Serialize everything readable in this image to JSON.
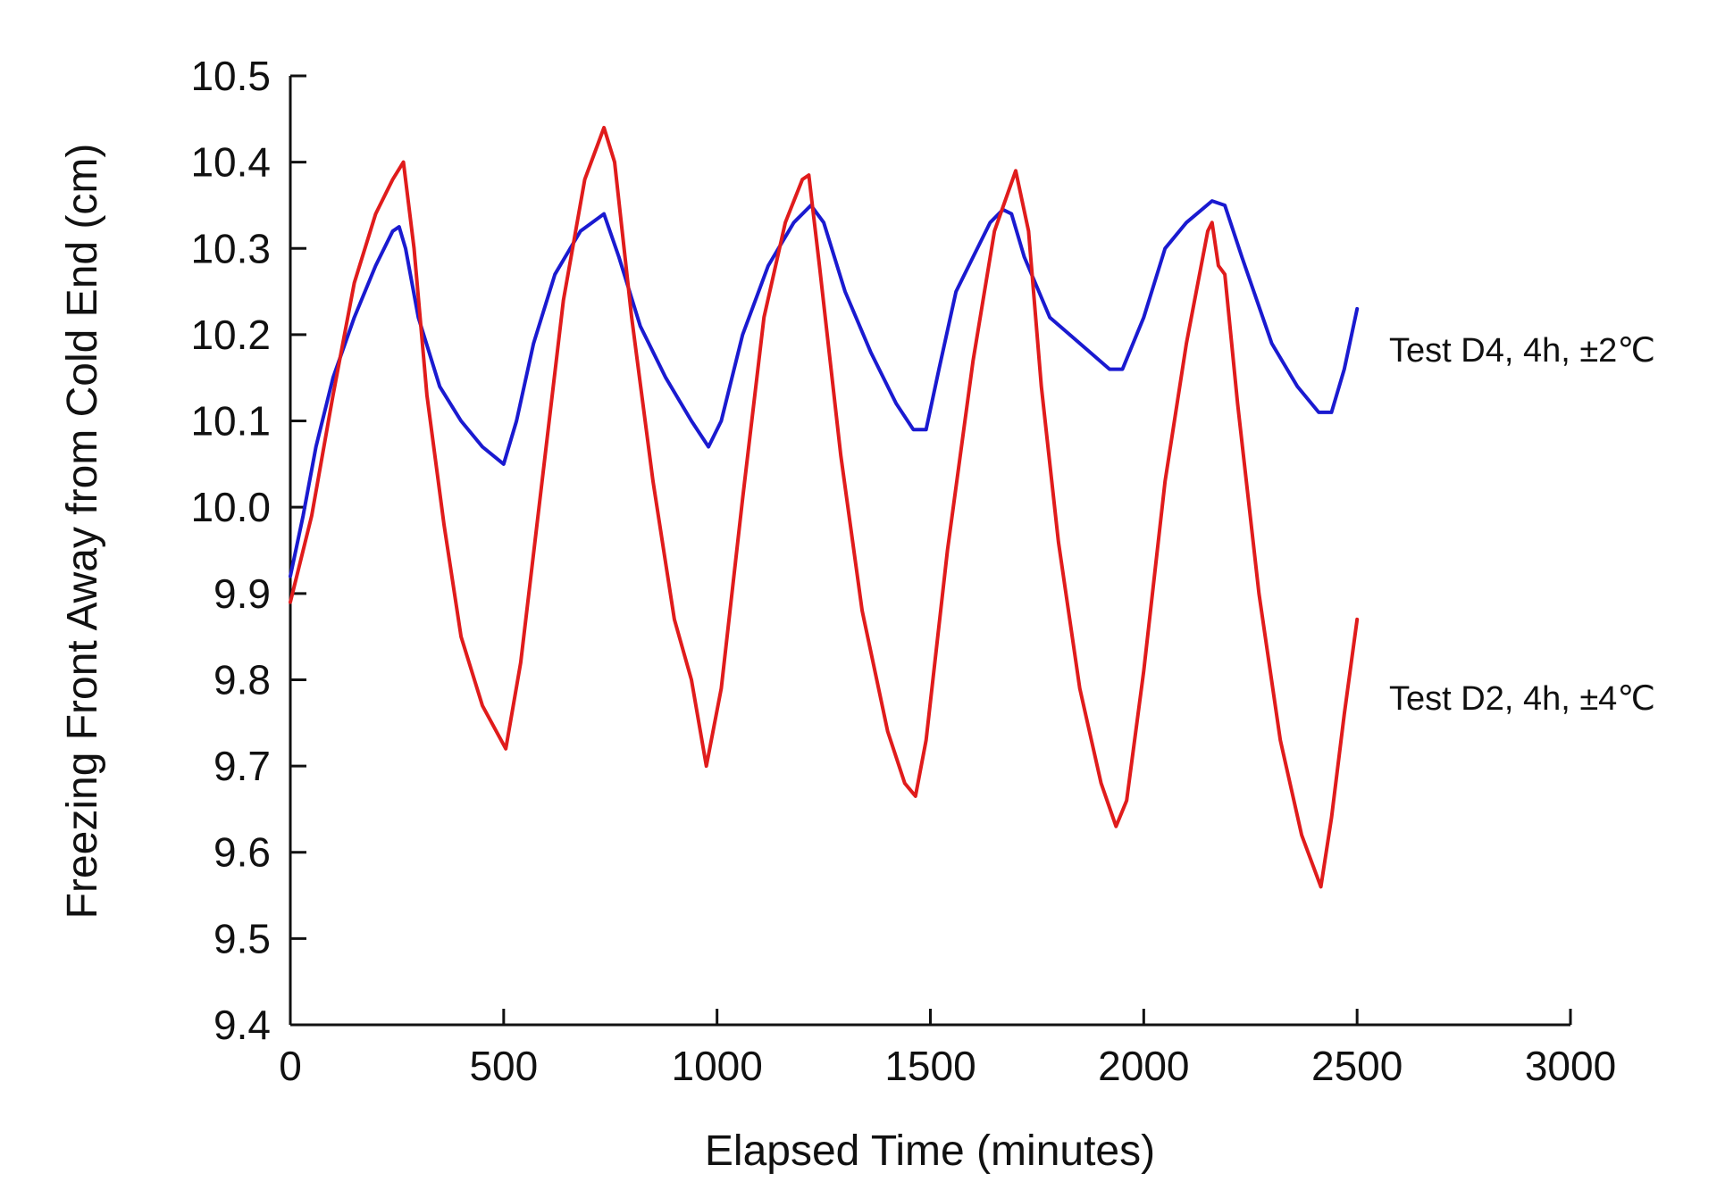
{
  "chart_data": {
    "type": "line",
    "title": "",
    "xlabel": "Elapsed Time (minutes)",
    "ylabel": "Freezing Front Away from Cold End (cm)",
    "xlim": [
      0,
      3000
    ],
    "ylim": [
      9.4,
      10.5
    ],
    "grid": false,
    "legend_position": "right (inline labels)",
    "x_ticks": [
      0,
      500,
      1000,
      1500,
      2000,
      2500,
      3000
    ],
    "x_tick_labels": [
      "0",
      "500",
      "1000",
      "1500",
      "2000",
      "2500",
      "3000"
    ],
    "y_ticks": [
      9.4,
      9.5,
      9.6,
      9.7,
      9.8,
      9.9,
      10.0,
      10.1,
      10.2,
      10.3,
      10.4,
      10.5
    ],
    "y_tick_labels": [
      "9.4",
      "9.5",
      "9.6",
      "9.7",
      "9.8",
      "9.9",
      "10.0",
      "10.1",
      "10.2",
      "10.3",
      "10.4",
      "10.5"
    ],
    "series": [
      {
        "name": "Test D4, 4h, ±2℃",
        "color": "#1a1ad0",
        "x": [
          0,
          30,
          60,
          100,
          150,
          200,
          240,
          255,
          270,
          300,
          350,
          400,
          450,
          500,
          530,
          570,
          620,
          680,
          735,
          770,
          820,
          880,
          940,
          980,
          1010,
          1060,
          1120,
          1180,
          1220,
          1250,
          1300,
          1360,
          1420,
          1460,
          1490,
          1520,
          1560,
          1600,
          1640,
          1670,
          1690,
          1720,
          1780,
          1850,
          1920,
          1950,
          2000,
          2050,
          2100,
          2160,
          2190,
          2230,
          2300,
          2360,
          2410,
          2440,
          2470,
          2500
        ],
        "values": [
          9.92,
          9.99,
          10.07,
          10.15,
          10.22,
          10.28,
          10.32,
          10.325,
          10.3,
          10.22,
          10.14,
          10.1,
          10.07,
          10.05,
          10.1,
          10.19,
          10.27,
          10.32,
          10.34,
          10.29,
          10.21,
          10.15,
          10.1,
          10.07,
          10.1,
          10.2,
          10.28,
          10.33,
          10.35,
          10.33,
          10.25,
          10.18,
          10.12,
          10.09,
          10.09,
          10.16,
          10.25,
          10.29,
          10.33,
          10.345,
          10.34,
          10.29,
          10.22,
          10.19,
          10.16,
          10.16,
          10.22,
          10.3,
          10.33,
          10.355,
          10.35,
          10.29,
          10.19,
          10.14,
          10.11,
          10.11,
          10.16,
          10.23
        ]
      },
      {
        "name": "Test D2, 4h, ±4℃",
        "color": "#e01c1c",
        "x": [
          0,
          50,
          100,
          150,
          200,
          240,
          265,
          290,
          320,
          360,
          400,
          450,
          505,
          540,
          590,
          640,
          690,
          735,
          760,
          800,
          850,
          900,
          940,
          975,
          1010,
          1060,
          1110,
          1160,
          1200,
          1215,
          1240,
          1290,
          1340,
          1400,
          1440,
          1465,
          1490,
          1540,
          1600,
          1650,
          1700,
          1730,
          1760,
          1800,
          1850,
          1900,
          1935,
          1960,
          2000,
          2050,
          2100,
          2150,
          2160,
          2175,
          2190,
          2220,
          2270,
          2320,
          2370,
          2415,
          2440,
          2470,
          2500
        ],
        "values": [
          9.89,
          9.99,
          10.13,
          10.26,
          10.34,
          10.38,
          10.4,
          10.3,
          10.13,
          9.98,
          9.85,
          9.77,
          9.72,
          9.82,
          10.03,
          10.24,
          10.38,
          10.44,
          10.4,
          10.22,
          10.03,
          9.87,
          9.8,
          9.7,
          9.79,
          10.01,
          10.22,
          10.33,
          10.38,
          10.385,
          10.28,
          10.06,
          9.88,
          9.74,
          9.68,
          9.665,
          9.73,
          9.95,
          10.17,
          10.32,
          10.39,
          10.32,
          10.14,
          9.96,
          9.79,
          9.68,
          9.63,
          9.66,
          9.81,
          10.03,
          10.19,
          10.32,
          10.33,
          10.28,
          10.27,
          10.12,
          9.9,
          9.73,
          9.62,
          9.56,
          9.64,
          9.76,
          9.87
        ]
      }
    ]
  }
}
